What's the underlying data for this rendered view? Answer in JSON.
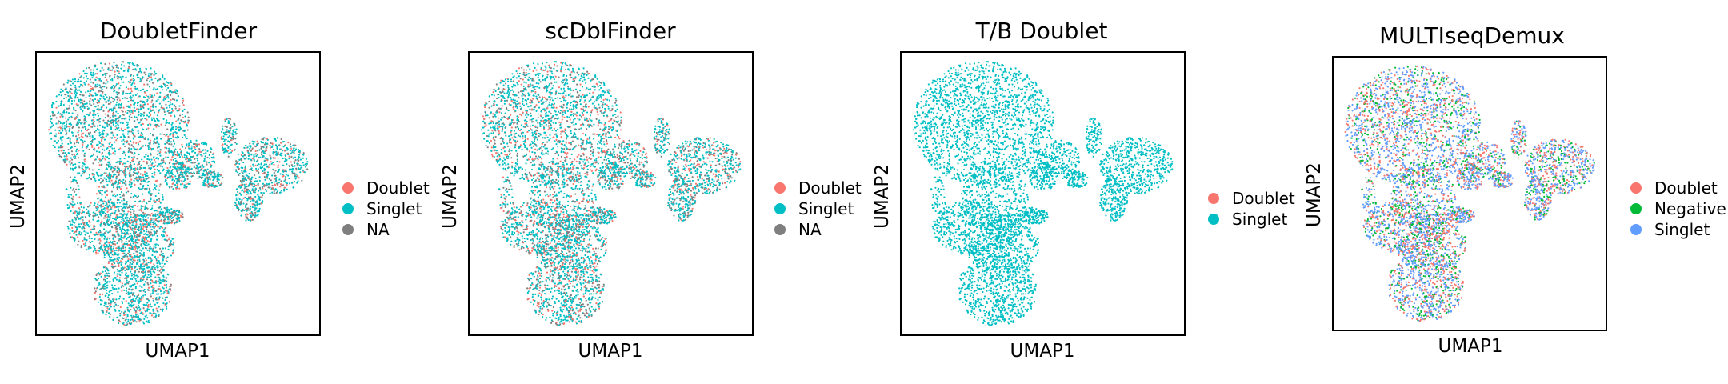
{
  "chart_data": [
    {
      "type": "scatter",
      "title": "DoubletFinder",
      "xlabel": "UMAP1",
      "ylabel": "UMAP2",
      "grid": false,
      "legend_placement": "right",
      "legend": [
        {
          "label": "Doublet",
          "color": "#F8766D"
        },
        {
          "label": "Singlet",
          "color": "#00BFC4"
        },
        {
          "label": "NA",
          "color": "#7F7F7F"
        }
      ],
      "mix": {
        "Doublet": 0.16,
        "Singlet": 0.64,
        "NA": 0.2
      }
    },
    {
      "type": "scatter",
      "title": "scDblFinder",
      "xlabel": "UMAP1",
      "ylabel": "UMAP2",
      "grid": false,
      "legend_placement": "right",
      "legend": [
        {
          "label": "Doublet",
          "color": "#F8766D"
        },
        {
          "label": "Singlet",
          "color": "#00BFC4"
        },
        {
          "label": "NA",
          "color": "#7F7F7F"
        }
      ],
      "mix": {
        "Doublet": 0.17,
        "Singlet": 0.63,
        "NA": 0.2
      }
    },
    {
      "type": "scatter",
      "title": "T/B Doublet",
      "xlabel": "UMAP1",
      "ylabel": "UMAP2",
      "grid": false,
      "legend_placement": "right",
      "legend": [
        {
          "label": "Doublet",
          "color": "#F8766D"
        },
        {
          "label": "Singlet",
          "color": "#00BFC4"
        }
      ],
      "mix": {
        "Doublet": 0.0,
        "Singlet": 1.0
      }
    },
    {
      "type": "scatter",
      "title": "MULTIseqDemux",
      "xlabel": "UMAP1",
      "ylabel": "UMAP2",
      "grid": false,
      "legend_placement": "right",
      "legend": [
        {
          "label": "Doublet",
          "color": "#F8766D"
        },
        {
          "label": "Negative",
          "color": "#00BA38"
        },
        {
          "label": "Singlet",
          "color": "#619CFF"
        }
      ],
      "mix": {
        "Doublet": 0.3,
        "Negative": 0.22,
        "Singlet": 0.48
      }
    }
  ]
}
